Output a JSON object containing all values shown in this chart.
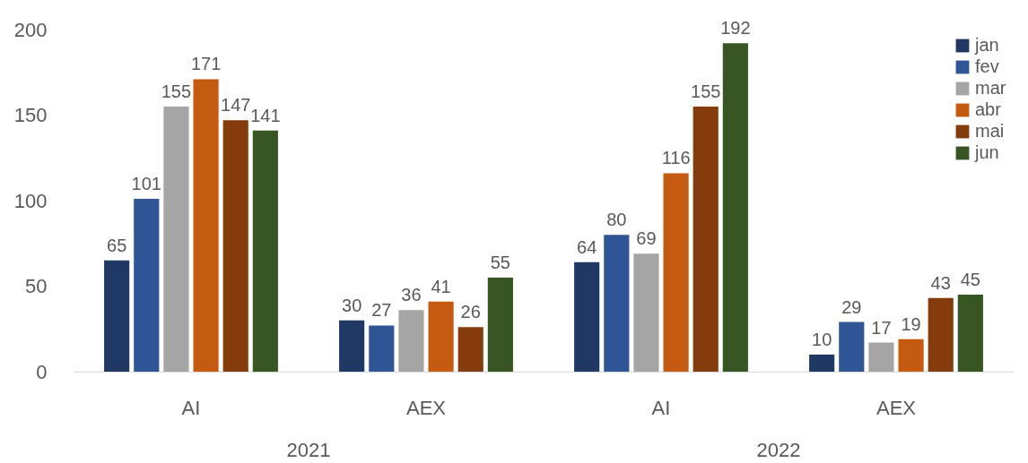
{
  "chart_data": {
    "type": "bar",
    "categories": [
      "AI",
      "AEX",
      "AI",
      "AEX"
    ],
    "series": [
      {
        "name": "jan",
        "color": "#203864",
        "values": [
          65,
          30,
          64,
          10
        ]
      },
      {
        "name": "fev",
        "color": "#2f5597",
        "values": [
          101,
          27,
          80,
          29
        ]
      },
      {
        "name": "mar",
        "color": "#a5a5a5",
        "values": [
          155,
          36,
          69,
          17
        ]
      },
      {
        "name": "abr",
        "color": "#c55a11",
        "values": [
          171,
          41,
          116,
          19
        ]
      },
      {
        "name": "mai",
        "color": "#843c0c",
        "values": [
          147,
          26,
          155,
          43
        ]
      },
      {
        "name": "jun",
        "color": "#375623",
        "values": [
          141,
          55,
          192,
          45
        ]
      }
    ],
    "ylim": [
      0,
      200
    ],
    "yticks": [
      0,
      50,
      100,
      150,
      200
    ],
    "grid": false,
    "legend": "right",
    "data_labels": true,
    "annotations": [
      "2021",
      "2022"
    ]
  }
}
